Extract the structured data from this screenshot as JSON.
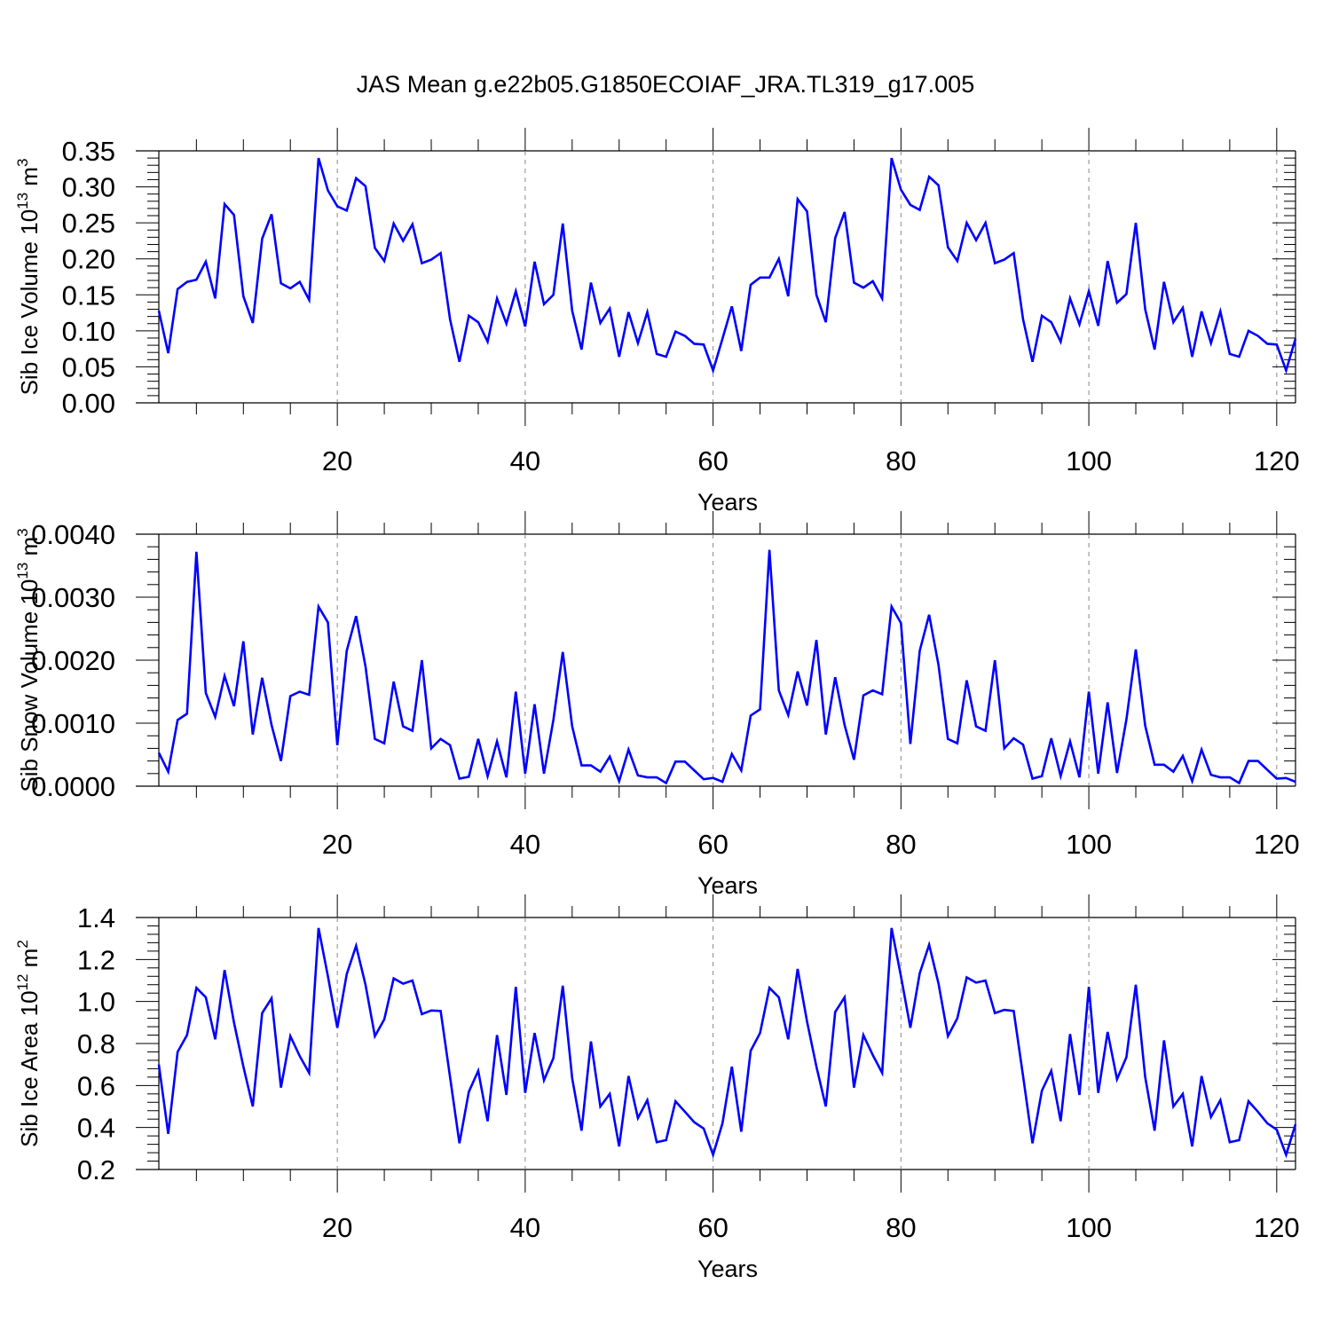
{
  "figure": {
    "title": "JAS Mean g.e22b05.G1850ECOIAF_JRA.TL319_g17.005"
  },
  "chart_data": [
    {
      "type": "line",
      "xlabel": "Years",
      "ylabel": "Sib Ice Volume 10",
      "ylabel_sup1": "13",
      "ylabel_mid": " m",
      "ylabel_sup2": "3",
      "xlim": [
        1,
        122
      ],
      "ylim": [
        0,
        0.35
      ],
      "xticks": [
        20,
        40,
        60,
        80,
        100,
        120
      ],
      "yticks": [
        0.0,
        0.05,
        0.1,
        0.15,
        0.2,
        0.25,
        0.3,
        0.35
      ],
      "ytick_labels": [
        "0.00",
        "0.05",
        "0.10",
        "0.15",
        "0.20",
        "0.25",
        "0.30",
        "0.35"
      ],
      "grid": "vertical-dashed",
      "color": "#0000ff",
      "x_start": 1,
      "values": [
        0.128,
        0.069,
        0.158,
        0.168,
        0.171,
        0.196,
        0.145,
        0.276,
        0.261,
        0.148,
        0.111,
        0.228,
        0.262,
        0.166,
        0.159,
        0.168,
        0.143,
        0.34,
        0.295,
        0.273,
        0.267,
        0.312,
        0.301,
        0.215,
        0.197,
        0.249,
        0.225,
        0.248,
        0.194,
        0.199,
        0.208,
        0.116,
        0.057,
        0.121,
        0.112,
        0.085,
        0.145,
        0.11,
        0.155,
        0.106,
        0.196,
        0.137,
        0.15,
        0.249,
        0.128,
        0.074,
        0.167,
        0.111,
        0.131,
        0.064,
        0.126,
        0.083,
        0.126,
        0.068,
        0.064,
        0.099,
        0.093,
        0.082,
        0.081,
        0.045,
        0.089,
        0.134,
        0.072,
        0.164,
        0.174,
        0.174,
        0.2,
        0.148,
        0.283,
        0.266,
        0.15,
        0.112,
        0.229,
        0.265,
        0.167,
        0.16,
        0.169,
        0.145,
        0.34,
        0.296,
        0.275,
        0.268,
        0.314,
        0.302,
        0.216,
        0.197,
        0.25,
        0.226,
        0.25,
        0.194,
        0.199,
        0.208,
        0.116,
        0.057,
        0.121,
        0.112,
        0.085,
        0.145,
        0.109,
        0.155,
        0.107,
        0.197,
        0.139,
        0.151,
        0.25,
        0.13,
        0.074,
        0.168,
        0.112,
        0.132,
        0.064,
        0.127,
        0.083,
        0.127,
        0.068,
        0.064,
        0.1,
        0.093,
        0.082,
        0.081,
        0.045,
        0.089
      ]
    },
    {
      "type": "line",
      "xlabel": "Years",
      "ylabel": "Sib Snow Volume 10",
      "ylabel_sup1": "13",
      "ylabel_mid": " m",
      "ylabel_sup2": "3",
      "xlim": [
        1,
        122
      ],
      "ylim": [
        0,
        0.004
      ],
      "xticks": [
        20,
        40,
        60,
        80,
        100,
        120
      ],
      "yticks": [
        0.0,
        0.001,
        0.002,
        0.003,
        0.004
      ],
      "ytick_labels": [
        "0.0000",
        "0.0010",
        "0.0020",
        "0.0030",
        "0.0040"
      ],
      "grid": "vertical-dashed",
      "color": "#0000ff",
      "x_start": 1,
      "values": [
        0.00053,
        0.00023,
        0.00105,
        0.00115,
        0.00372,
        0.00148,
        0.0011,
        0.00175,
        0.00127,
        0.0023,
        0.00082,
        0.00172,
        0.00097,
        0.0004,
        0.00143,
        0.0015,
        0.00145,
        0.00285,
        0.0026,
        0.00065,
        0.00215,
        0.0027,
        0.0019,
        0.00075,
        0.00068,
        0.00166,
        0.00095,
        0.00088,
        0.002,
        0.0006,
        0.00075,
        0.00065,
        0.00012,
        0.00015,
        0.00075,
        0.00016,
        0.00071,
        0.00014,
        0.0015,
        0.0002,
        0.0013,
        0.0002,
        0.00105,
        0.00213,
        0.00095,
        0.00033,
        0.00033,
        0.00023,
        0.00047,
        8e-05,
        0.00058,
        0.00017,
        0.00014,
        0.00014,
        5e-05,
        0.00039,
        0.00039,
        0.00025,
        0.00011,
        0.00013,
        7e-05,
        0.00051,
        0.00025,
        0.00112,
        0.00122,
        0.00375,
        0.00152,
        0.00113,
        0.00182,
        0.00128,
        0.00232,
        0.00082,
        0.00173,
        0.00097,
        0.00042,
        0.00144,
        0.00152,
        0.00146,
        0.00285,
        0.00259,
        0.00067,
        0.00215,
        0.00272,
        0.00192,
        0.00075,
        0.00068,
        0.00168,
        0.00095,
        0.00088,
        0.002,
        0.0006,
        0.00076,
        0.00066,
        0.00012,
        0.00016,
        0.00076,
        0.00016,
        0.00071,
        0.00014,
        0.0015,
        0.0002,
        0.00133,
        0.00021,
        0.00106,
        0.00217,
        0.00096,
        0.00034,
        0.00034,
        0.00023,
        0.00048,
        8e-05,
        0.00058,
        0.00018,
        0.00014,
        0.00014,
        5e-05,
        0.0004,
        0.0004,
        0.00026,
        0.00012,
        0.00013,
        7e-05
      ]
    },
    {
      "type": "line",
      "xlabel": "Years",
      "ylabel": "Sib Ice Area 10",
      "ylabel_sup1": "12",
      "ylabel_mid": " m",
      "ylabel_sup2": "2",
      "xlim": [
        1,
        122
      ],
      "ylim": [
        0.2,
        1.4
      ],
      "xticks": [
        20,
        40,
        60,
        80,
        100,
        120
      ],
      "yticks": [
        0.2,
        0.4,
        0.6,
        0.8,
        1.0,
        1.2,
        1.4
      ],
      "ytick_labels": [
        "0.2",
        "0.4",
        "0.6",
        "0.8",
        "1.0",
        "1.2",
        "1.4"
      ],
      "grid": "vertical-dashed",
      "color": "#0000ff",
      "x_start": 1,
      "values": [
        0.7,
        0.37,
        0.76,
        0.84,
        1.065,
        1.02,
        0.82,
        1.15,
        0.9,
        0.69,
        0.5,
        0.945,
        1.015,
        0.59,
        0.835,
        0.74,
        0.66,
        1.35,
        1.12,
        0.875,
        1.13,
        1.265,
        1.08,
        0.835,
        0.915,
        1.11,
        1.085,
        1.1,
        0.94,
        0.957,
        0.955,
        0.64,
        0.325,
        0.57,
        0.67,
        0.43,
        0.84,
        0.555,
        1.07,
        0.565,
        0.85,
        0.625,
        0.73,
        1.075,
        0.635,
        0.385,
        0.81,
        0.5,
        0.56,
        0.31,
        0.645,
        0.445,
        0.53,
        0.33,
        0.34,
        0.525,
        0.475,
        0.425,
        0.395,
        0.27,
        0.42,
        0.69,
        0.38,
        0.765,
        0.85,
        1.065,
        1.02,
        0.82,
        1.155,
        0.905,
        0.69,
        0.5,
        0.95,
        1.02,
        0.59,
        0.84,
        0.745,
        0.66,
        1.35,
        1.12,
        0.875,
        1.135,
        1.27,
        1.085,
        0.835,
        0.92,
        1.115,
        1.09,
        1.1,
        0.945,
        0.96,
        0.955,
        0.645,
        0.325,
        0.575,
        0.67,
        0.43,
        0.845,
        0.555,
        1.07,
        0.565,
        0.855,
        0.63,
        0.735,
        1.08,
        0.64,
        0.385,
        0.815,
        0.5,
        0.56,
        0.31,
        0.645,
        0.45,
        0.53,
        0.33,
        0.34,
        0.525,
        0.475,
        0.42,
        0.39,
        0.27,
        0.415
      ]
    }
  ]
}
